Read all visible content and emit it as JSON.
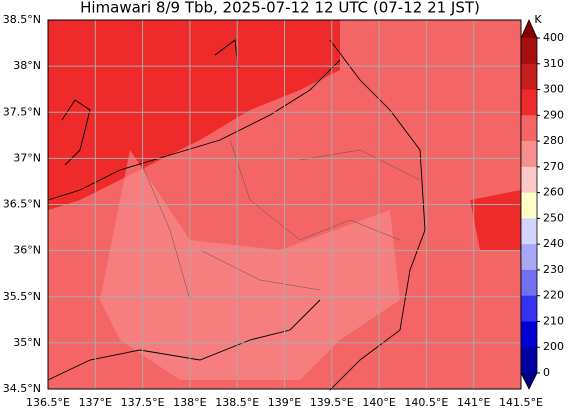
{
  "title": "Himawari 8/9 Tbb, 2025-07-12 12 UTC (07-12 21 JST)",
  "map": {
    "lon_range": [
      136.5,
      141.5
    ],
    "lat_range": [
      34.5,
      38.5
    ],
    "lon_ticks": [
      {
        "value": 136.5,
        "label": "136.5°E"
      },
      {
        "value": 137,
        "label": "137°E"
      },
      {
        "value": 137.5,
        "label": "137.5°E"
      },
      {
        "value": 138,
        "label": "138°E"
      },
      {
        "value": 138.5,
        "label": "138.5°E"
      },
      {
        "value": 139,
        "label": "139°E"
      },
      {
        "value": 139.5,
        "label": "139.5°E"
      },
      {
        "value": 140,
        "label": "140°E"
      },
      {
        "value": 140.5,
        "label": "140.5°E"
      },
      {
        "value": 141,
        "label": "141°E"
      },
      {
        "value": 141.5,
        "label": "141.5°E"
      }
    ],
    "lat_ticks": [
      {
        "value": 34.5,
        "label": "34.5°N"
      },
      {
        "value": 35,
        "label": "35°N"
      },
      {
        "value": 35.5,
        "label": "35.5°N"
      },
      {
        "value": 36,
        "label": "36°N"
      },
      {
        "value": 36.5,
        "label": "36.5°N"
      },
      {
        "value": 37,
        "label": "37°N"
      },
      {
        "value": 37.5,
        "label": "37.5°N"
      },
      {
        "value": 38,
        "label": "38°N"
      },
      {
        "value": 38.5,
        "label": "38.5°N"
      }
    ]
  },
  "colorbar": {
    "unit": "K",
    "labels": [
      "400",
      "310",
      "300",
      "290",
      "280",
      "270",
      "260",
      "250",
      "240",
      "230",
      "220",
      "210",
      "200",
      "0"
    ],
    "colors": [
      "#a50f0f",
      "#c41e1e",
      "#ee2a2a",
      "#f46565",
      "#f78f8f",
      "#fbc8c8",
      "#ffffc8",
      "#d4d4ff",
      "#a8a8f6",
      "#7272ee",
      "#3434ee",
      "#0000d2",
      "#0000a0"
    ],
    "over_color": "#800000",
    "under_color": "#000080"
  }
}
